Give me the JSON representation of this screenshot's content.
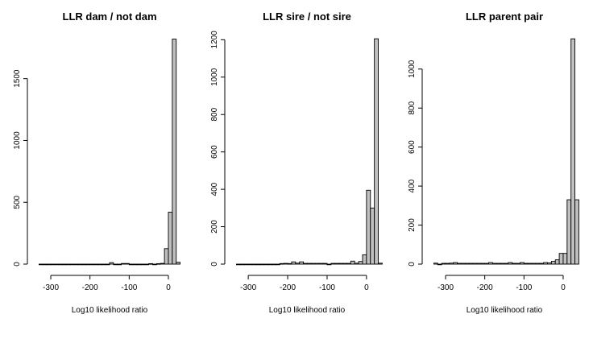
{
  "figure": {
    "bar_fill": "#c0c0c0",
    "bar_stroke": "#000000"
  },
  "chart_data": [
    {
      "type": "bar",
      "title": "LLR dam / not dam",
      "xlabel": "Log10 likelihood ratio",
      "ylabel": "",
      "xlim": [
        -335,
        35
      ],
      "ylim": [
        0,
        1830
      ],
      "xticks": [
        -300,
        -200,
        -100,
        0
      ],
      "xtick_labels": [
        "-300",
        "-200",
        "-100",
        "0"
      ],
      "yticks": [
        0,
        500,
        1000,
        1500
      ],
      "ytick_labels": [
        "0",
        "500",
        "1000",
        "1500"
      ],
      "bin_width": 10,
      "bins": [
        {
          "x0": -330,
          "value": 0
        },
        {
          "x0": -320,
          "value": 0
        },
        {
          "x0": -310,
          "value": 0
        },
        {
          "x0": -300,
          "value": 0
        },
        {
          "x0": -290,
          "value": 0
        },
        {
          "x0": -280,
          "value": 0
        },
        {
          "x0": -270,
          "value": 0
        },
        {
          "x0": -260,
          "value": 0
        },
        {
          "x0": -250,
          "value": 0
        },
        {
          "x0": -240,
          "value": 0
        },
        {
          "x0": -230,
          "value": 0
        },
        {
          "x0": -220,
          "value": 0
        },
        {
          "x0": -210,
          "value": 0
        },
        {
          "x0": -200,
          "value": 0
        },
        {
          "x0": -190,
          "value": 0
        },
        {
          "x0": -180,
          "value": 0
        },
        {
          "x0": -170,
          "value": 0
        },
        {
          "x0": -160,
          "value": 0
        },
        {
          "x0": -150,
          "value": 12
        },
        {
          "x0": -140,
          "value": 0
        },
        {
          "x0": -130,
          "value": 0
        },
        {
          "x0": -120,
          "value": 5
        },
        {
          "x0": -110,
          "value": 5
        },
        {
          "x0": -100,
          "value": 0
        },
        {
          "x0": -90,
          "value": 0
        },
        {
          "x0": -80,
          "value": 0
        },
        {
          "x0": -70,
          "value": 0
        },
        {
          "x0": -60,
          "value": 0
        },
        {
          "x0": -50,
          "value": 4
        },
        {
          "x0": -40,
          "value": 0
        },
        {
          "x0": -30,
          "value": 4
        },
        {
          "x0": -20,
          "value": 6
        },
        {
          "x0": -10,
          "value": 125
        },
        {
          "x0": 0,
          "value": 420
        },
        {
          "x0": 10,
          "value": 1820
        },
        {
          "x0": 20,
          "value": 15
        }
      ]
    },
    {
      "type": "bar",
      "title": "LLR sire / not sire",
      "xlabel": "Log10 likelihood ratio",
      "ylabel": "",
      "xlim": [
        -335,
        35
      ],
      "ylim": [
        0,
        1210
      ],
      "xticks": [
        -300,
        -200,
        -100,
        0
      ],
      "xtick_labels": [
        "-300",
        "-200",
        "-100",
        "0"
      ],
      "yticks": [
        0,
        200,
        400,
        600,
        800,
        1000,
        1200
      ],
      "ytick_labels": [
        "0",
        "200",
        "400",
        "600",
        "800",
        "1000",
        "1200"
      ],
      "bin_width": 10,
      "bins": [
        {
          "x0": -330,
          "value": 0
        },
        {
          "x0": -320,
          "value": 0
        },
        {
          "x0": -310,
          "value": 0
        },
        {
          "x0": -300,
          "value": 0
        },
        {
          "x0": -290,
          "value": 0
        },
        {
          "x0": -280,
          "value": 0
        },
        {
          "x0": -270,
          "value": 0
        },
        {
          "x0": -260,
          "value": 0
        },
        {
          "x0": -250,
          "value": 0
        },
        {
          "x0": -240,
          "value": 0
        },
        {
          "x0": -230,
          "value": 0
        },
        {
          "x0": -220,
          "value": 3
        },
        {
          "x0": -210,
          "value": 4
        },
        {
          "x0": -200,
          "value": 3
        },
        {
          "x0": -190,
          "value": 12
        },
        {
          "x0": -180,
          "value": 5
        },
        {
          "x0": -170,
          "value": 12
        },
        {
          "x0": -160,
          "value": 4
        },
        {
          "x0": -150,
          "value": 4
        },
        {
          "x0": -140,
          "value": 4
        },
        {
          "x0": -130,
          "value": 4
        },
        {
          "x0": -120,
          "value": 4
        },
        {
          "x0": -110,
          "value": 4
        },
        {
          "x0": -100,
          "value": 0
        },
        {
          "x0": -90,
          "value": 4
        },
        {
          "x0": -80,
          "value": 4
        },
        {
          "x0": -70,
          "value": 4
        },
        {
          "x0": -60,
          "value": 4
        },
        {
          "x0": -50,
          "value": 4
        },
        {
          "x0": -40,
          "value": 16
        },
        {
          "x0": -30,
          "value": 5
        },
        {
          "x0": -20,
          "value": 14
        },
        {
          "x0": -10,
          "value": 50
        },
        {
          "x0": 0,
          "value": 395
        },
        {
          "x0": 10,
          "value": 300
        },
        {
          "x0": 20,
          "value": 1205
        },
        {
          "x0": 30,
          "value": 5
        }
      ]
    },
    {
      "type": "bar",
      "title": "LLR parent pair",
      "xlabel": "Log10 likelihood ratio",
      "ylabel": "",
      "xlim": [
        -335,
        35
      ],
      "ylim": [
        0,
        1160
      ],
      "xticks": [
        -300,
        -200,
        -100,
        0
      ],
      "xtick_labels": [
        "-300",
        "-200",
        "-100",
        "0"
      ],
      "yticks": [
        0,
        200,
        400,
        600,
        800,
        1000
      ],
      "ytick_labels": [
        "0",
        "200",
        "400",
        "600",
        "800",
        "1000"
      ],
      "bin_width": 10,
      "bins": [
        {
          "x0": -330,
          "value": 5
        },
        {
          "x0": -320,
          "value": 0
        },
        {
          "x0": -310,
          "value": 4
        },
        {
          "x0": -300,
          "value": 4
        },
        {
          "x0": -290,
          "value": 5
        },
        {
          "x0": -280,
          "value": 8
        },
        {
          "x0": -270,
          "value": 4
        },
        {
          "x0": -260,
          "value": 4
        },
        {
          "x0": -250,
          "value": 4
        },
        {
          "x0": -240,
          "value": 4
        },
        {
          "x0": -230,
          "value": 4
        },
        {
          "x0": -220,
          "value": 4
        },
        {
          "x0": -210,
          "value": 4
        },
        {
          "x0": -200,
          "value": 4
        },
        {
          "x0": -190,
          "value": 8
        },
        {
          "x0": -180,
          "value": 4
        },
        {
          "x0": -170,
          "value": 4
        },
        {
          "x0": -160,
          "value": 4
        },
        {
          "x0": -150,
          "value": 4
        },
        {
          "x0": -140,
          "value": 8
        },
        {
          "x0": -130,
          "value": 4
        },
        {
          "x0": -120,
          "value": 4
        },
        {
          "x0": -110,
          "value": 8
        },
        {
          "x0": -100,
          "value": 4
        },
        {
          "x0": -90,
          "value": 4
        },
        {
          "x0": -80,
          "value": 4
        },
        {
          "x0": -70,
          "value": 4
        },
        {
          "x0": -60,
          "value": 4
        },
        {
          "x0": -50,
          "value": 8
        },
        {
          "x0": -40,
          "value": 6
        },
        {
          "x0": -30,
          "value": 14
        },
        {
          "x0": -20,
          "value": 22
        },
        {
          "x0": -10,
          "value": 55
        },
        {
          "x0": 0,
          "value": 55
        },
        {
          "x0": 10,
          "value": 330
        },
        {
          "x0": 20,
          "value": 1155
        },
        {
          "x0": 30,
          "value": 330
        }
      ]
    }
  ]
}
